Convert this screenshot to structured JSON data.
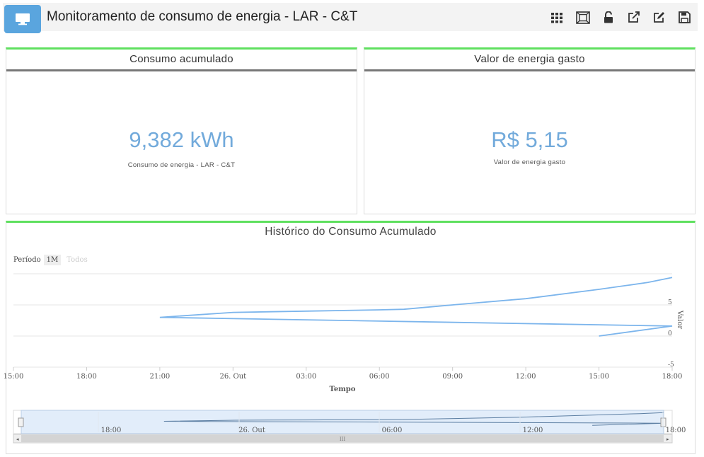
{
  "header": {
    "title": "Monitoramento de consumo de energia - LAR - C&T",
    "icons": [
      "monitor-icon",
      "grid-icon",
      "fullscreen-icon",
      "unlock-icon",
      "external-link-icon",
      "edit-icon",
      "save-icon"
    ]
  },
  "panels": {
    "consumo": {
      "title": "Consumo acumulado",
      "value": "9,382 kWh",
      "label": "Consumo de energia - LAR - C&T"
    },
    "valor": {
      "title": "Valor de energia gasto",
      "value": "R$ 5,15",
      "label": "Valor de energia gasto"
    }
  },
  "chart": {
    "title": "Histórico do Consumo Acumulado",
    "range_selector": {
      "label": "Período",
      "buttons": [
        "1M",
        "Todos"
      ],
      "active": "1M"
    },
    "navigator_labels": [
      "18:00",
      "26. Out",
      "06:00",
      "12:00",
      "18:00"
    ],
    "scrollbar_grip": "III"
  },
  "chart_data": {
    "type": "line",
    "title": "Histórico do Consumo Acumulado",
    "xlabel": "Tempo",
    "ylabel": "Valor",
    "x_ticks": [
      "15:00",
      "18:00",
      "21:00",
      "26. Out",
      "03:00",
      "06:00",
      "09:00",
      "12:00",
      "15:00",
      "18:00"
    ],
    "y_ticks": [
      -5,
      0,
      5
    ],
    "ylim": [
      -5,
      10
    ],
    "grid": true,
    "series": [
      {
        "x": [
          "15:00",
          "18:00",
          "21:00",
          "26. Out",
          "03:00",
          "06:00",
          "07:00",
          "09:00",
          "12:00",
          "15:00",
          "17:00",
          "18:00"
        ],
        "values": [
          0,
          1.6,
          3.0,
          3.8,
          4.0,
          4.2,
          4.3,
          5.0,
          6.0,
          7.5,
          8.6,
          9.4
        ],
        "color": "#7cb5ec"
      }
    ],
    "colors": {
      "line": "#7cb5ec",
      "accent": "#5fe05f",
      "value_text": "#72aadb",
      "header_button": "#5aa5de"
    }
  }
}
